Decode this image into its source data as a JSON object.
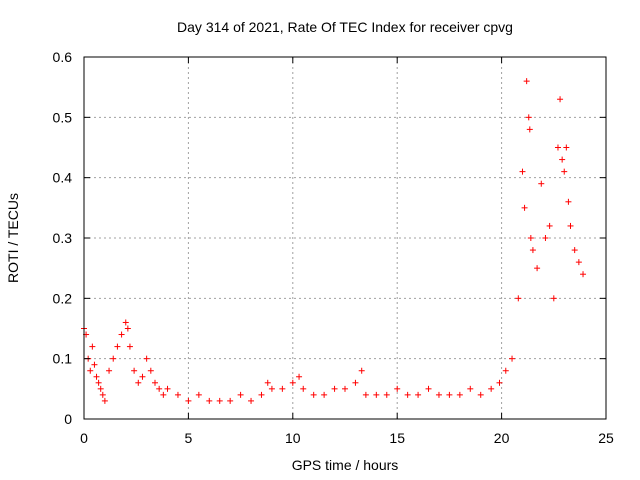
{
  "chart_data": {
    "type": "scatter",
    "title": "Day 314 of 2021, Rate Of TEC Index for receiver cpvg",
    "xlabel": "GPS time / hours",
    "ylabel": "ROTI / TECUs",
    "xlim": [
      0,
      25
    ],
    "ylim": [
      0,
      0.6
    ],
    "xticks": [
      "0",
      "5",
      "10",
      "15",
      "20",
      "25"
    ],
    "yticks": [
      "0",
      "0.1",
      "0.2",
      "0.3",
      "0.4",
      "0.5",
      "0.6"
    ],
    "grid": true,
    "marker": "+",
    "color": "#ff0000",
    "series": [
      {
        "x": [
          0.0,
          0.1,
          0.2,
          0.3,
          0.4,
          0.5,
          0.6,
          0.7,
          0.8,
          0.9,
          1.0,
          1.2,
          1.4,
          1.6,
          1.8,
          2.0,
          2.1,
          2.2,
          2.4,
          2.6,
          2.8,
          3.0,
          3.2,
          3.4,
          3.6,
          3.8,
          4.0,
          4.5,
          5.0,
          5.5,
          6.0,
          6.5,
          7.0,
          7.5,
          8.0,
          8.5,
          8.8,
          9.0,
          9.5,
          10.0,
          10.3,
          10.5,
          11.0,
          11.5,
          12.0,
          12.5,
          13.0,
          13.3,
          13.5,
          14.0,
          14.5,
          15.0,
          15.5,
          16.0,
          16.5,
          17.0,
          17.5,
          18.0,
          18.5,
          19.0,
          19.5,
          19.9,
          20.2,
          20.5,
          20.8,
          21.0,
          21.1,
          21.2,
          21.3,
          21.35,
          21.4,
          21.5,
          21.7,
          21.9,
          22.1,
          22.3,
          22.5,
          22.7,
          22.8,
          22.9,
          23.0,
          23.1,
          23.2,
          23.3,
          23.5,
          23.7,
          23.9
        ],
        "y": [
          0.15,
          0.14,
          0.1,
          0.08,
          0.12,
          0.09,
          0.07,
          0.06,
          0.05,
          0.04,
          0.03,
          0.08,
          0.1,
          0.12,
          0.14,
          0.16,
          0.15,
          0.12,
          0.08,
          0.06,
          0.07,
          0.1,
          0.08,
          0.06,
          0.05,
          0.04,
          0.05,
          0.04,
          0.03,
          0.04,
          0.03,
          0.03,
          0.03,
          0.04,
          0.03,
          0.04,
          0.06,
          0.05,
          0.05,
          0.06,
          0.07,
          0.05,
          0.04,
          0.04,
          0.05,
          0.05,
          0.06,
          0.08,
          0.04,
          0.04,
          0.04,
          0.05,
          0.04,
          0.04,
          0.05,
          0.04,
          0.04,
          0.04,
          0.05,
          0.04,
          0.05,
          0.06,
          0.08,
          0.1,
          0.2,
          0.41,
          0.35,
          0.56,
          0.5,
          0.48,
          0.3,
          0.28,
          0.25,
          0.39,
          0.3,
          0.32,
          0.2,
          0.45,
          0.53,
          0.43,
          0.41,
          0.45,
          0.36,
          0.32,
          0.28,
          0.26,
          0.24
        ]
      }
    ]
  }
}
